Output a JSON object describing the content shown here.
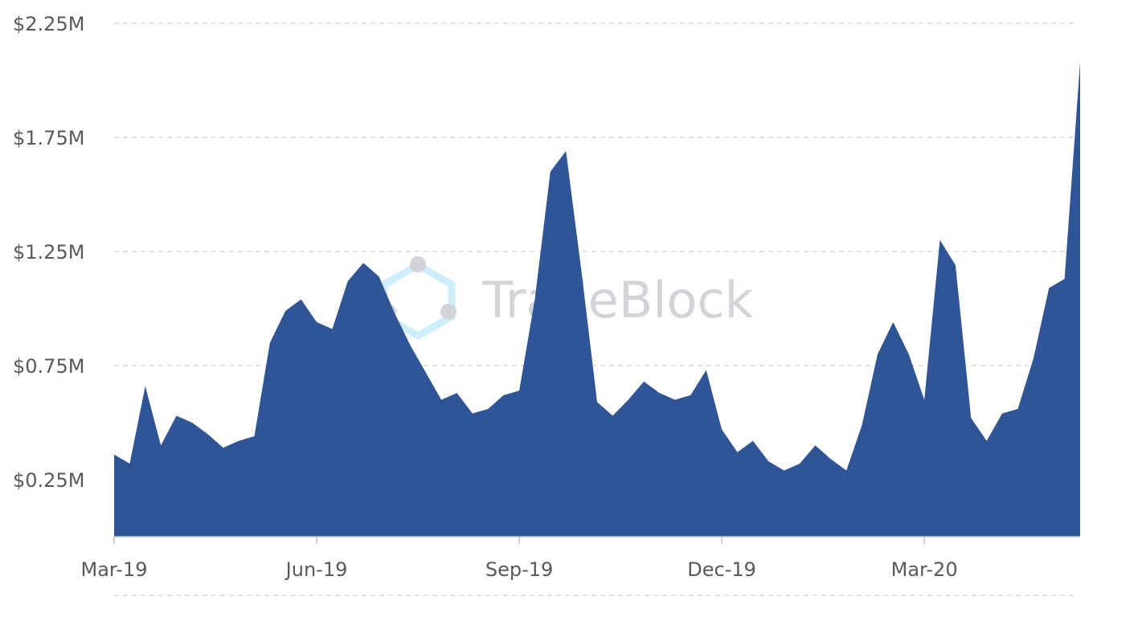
{
  "watermark": {
    "text": "TradeBlock"
  },
  "chart_data": {
    "type": "area",
    "title": "",
    "xlabel": "",
    "ylabel": "",
    "grid": true,
    "legend": "none",
    "color": "#2f5597",
    "ylim": [
      0,
      2.25
    ],
    "y_ticks": [
      {
        "value": 0.25,
        "label": "$0.25M"
      },
      {
        "value": 0.75,
        "label": "$0.75M"
      },
      {
        "value": 1.25,
        "label": "$1.25M"
      },
      {
        "value": 1.75,
        "label": "$1.75M"
      },
      {
        "value": 2.25,
        "label": "$2.25M"
      }
    ],
    "x_ticks": [
      {
        "index": 0,
        "label": "Mar-19"
      },
      {
        "index": 13,
        "label": "Jun-19"
      },
      {
        "index": 26,
        "label": "Sep-19"
      },
      {
        "index": 39,
        "label": "Dec-19"
      },
      {
        "index": 52,
        "label": "Mar-20"
      }
    ],
    "series": [
      {
        "values": [
          0.36,
          0.32,
          0.66,
          0.4,
          0.53,
          0.5,
          0.45,
          0.39,
          0.42,
          0.44,
          0.85,
          0.99,
          1.04,
          0.94,
          0.91,
          1.12,
          1.2,
          1.14,
          0.98,
          0.84,
          0.72,
          0.6,
          0.63,
          0.54,
          0.56,
          0.62,
          0.64,
          1.04,
          1.6,
          1.69,
          1.16,
          0.59,
          0.53,
          0.6,
          0.68,
          0.63,
          0.6,
          0.62,
          0.73,
          0.47,
          0.37,
          0.42,
          0.33,
          0.29,
          0.32,
          0.4,
          0.34,
          0.29,
          0.49,
          0.8,
          0.94,
          0.8,
          0.6,
          1.3,
          1.19,
          0.52,
          0.42,
          0.54,
          0.56,
          0.78,
          1.09,
          1.13,
          2.08
        ]
      }
    ]
  }
}
